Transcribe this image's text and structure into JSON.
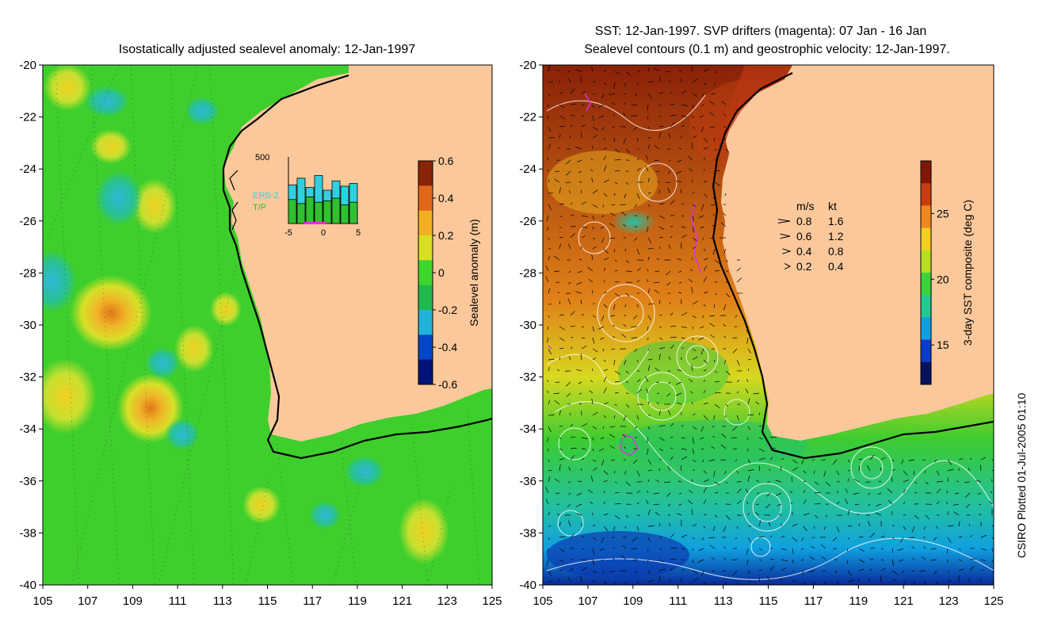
{
  "left_panel": {
    "title": "Isostatically adjusted sealevel anomaly: 12-Jan-1997",
    "colorbar": {
      "label": "Sealevel anomaly (m)",
      "ticks": [
        "0.6",
        "0.4",
        "0.2",
        "0",
        "-0.2",
        "-0.4",
        "-0.6"
      ],
      "range": [
        -0.6,
        0.6
      ],
      "colors": [
        "#00137a",
        "#0046c8",
        "#20b4d8",
        "#22b850",
        "#3ed62c",
        "#d8e020",
        "#f0b020",
        "#e06818",
        "#8a2408"
      ]
    },
    "inset": {
      "ymax_label": "500",
      "legend": [
        "ERS-2",
        "T/P"
      ],
      "legend_colors": [
        "#30d0e0",
        "#30c030"
      ],
      "x_ticks": [
        "-5",
        "0",
        "5"
      ],
      "ers2_values": [
        290,
        340,
        270,
        360,
        250,
        320,
        280,
        300
      ],
      "tp_values": [
        180,
        150,
        200,
        160,
        170,
        190,
        140,
        160
      ],
      "ymax": 500
    }
  },
  "right_panel": {
    "title_line1": "SST: 12-Jan-1997. SVP drifters (magenta): 07 Jan - 16 Jan",
    "title_line2": "Sealevel contours (0.1 m) and geostrophic velocity: 12-Jan-1997.",
    "colorbar": {
      "label": "3-day SST composite (deg C)",
      "ticks": [
        "25",
        "20",
        "15"
      ],
      "range": [
        12,
        29
      ],
      "colors": [
        "#05135f",
        "#0a3cc8",
        "#10a0e0",
        "#22c890",
        "#3cd23c",
        "#b8e020",
        "#f0d020",
        "#f08820",
        "#c83c10",
        "#801808"
      ]
    },
    "speed_legend": {
      "headers": [
        "m/s",
        "kt"
      ],
      "rows": [
        {
          "ms": "0.8",
          "kt": "1.6"
        },
        {
          "ms": "0.6",
          "kt": "1.2"
        },
        {
          "ms": "0.4",
          "kt": "0.8"
        },
        {
          "ms": "0.2",
          "kt": "0.4"
        }
      ]
    }
  },
  "axes": {
    "lat_labels": [
      "-20",
      "-22",
      "-24",
      "-26",
      "-28",
      "-30",
      "-32",
      "-34",
      "-36",
      "-38",
      "-40"
    ],
    "lon_labels": [
      "105",
      "107",
      "109",
      "111",
      "113",
      "115",
      "117",
      "119",
      "121",
      "123",
      "125"
    ],
    "lat_range": [
      -40,
      -20
    ],
    "lon_range": [
      105,
      125
    ]
  },
  "credit": "CSIRO Plotted 01-Jul-2005 01:10",
  "colors": {
    "land": "#fbc89b",
    "ocean_base_left": "#3ecf2c",
    "drifter": "#e030e0",
    "contour": "#ffffff"
  }
}
